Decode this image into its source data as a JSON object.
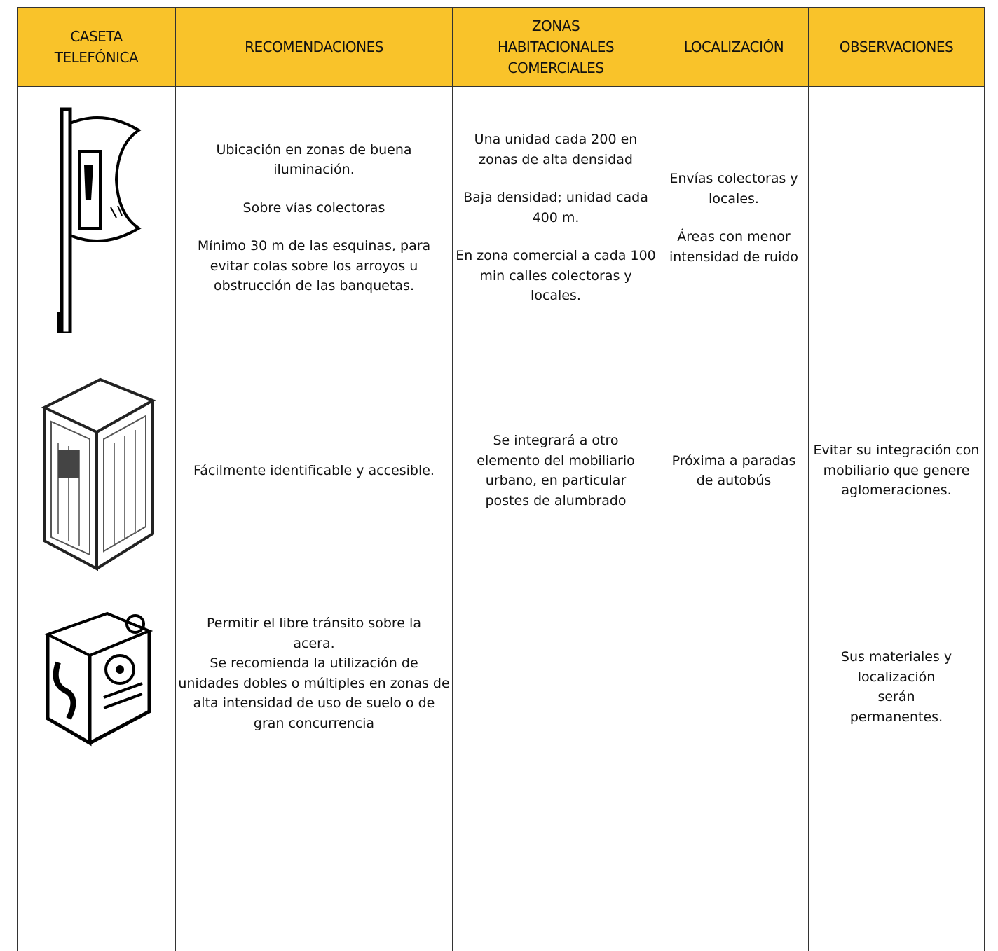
{
  "table": {
    "header": [
      "CASETA TELEFÓNICA",
      "RECOMENDACIONES",
      "ZONAS HABITACIONALES COMERCIALES",
      "LOCALIZACIÓN",
      "OBSERVACIONES"
    ],
    "rows": [
      [
        [
          "Ubicación en zonas de buena iluminación.",
          "Sobre vías colectoras",
          "Mínimo 30 m de las esquinas, para evitar colas sobre los arroyos u obstrucción de las banquetas."
        ],
        [
          "Una unidad cada 200 en zonas de alta densidad",
          "Baja densidad; unidad cada 400 m.",
          "En zona comercial a cada 100 min calles colectoras y locales."
        ],
        [
          "Envías colectoras y locales.",
          "Áreas con menor intensidad de ruido"
        ],
        []
      ],
      [
        [
          "Fácilmente identificable y accesible."
        ],
        [
          "Se integrará a otro elemento del mobiliario urbano, en particular postes de alumbrado"
        ],
        [
          "Próxima a paradas de autobús"
        ],
        [
          "Evitar su integración con mobiliario que genere aglomeraciones."
        ]
      ],
      [
        [
          "Permitir el libre tránsito sobre la acera.",
          "Se recomienda la utilización de unidades dobles o múltiples en zonas de alta intensidad de uso de suelo o de gran concurrencia"
        ],
        [],
        [],
        [
          "Sus materiales y localización serán permanentes."
        ]
      ]
    ]
  }
}
